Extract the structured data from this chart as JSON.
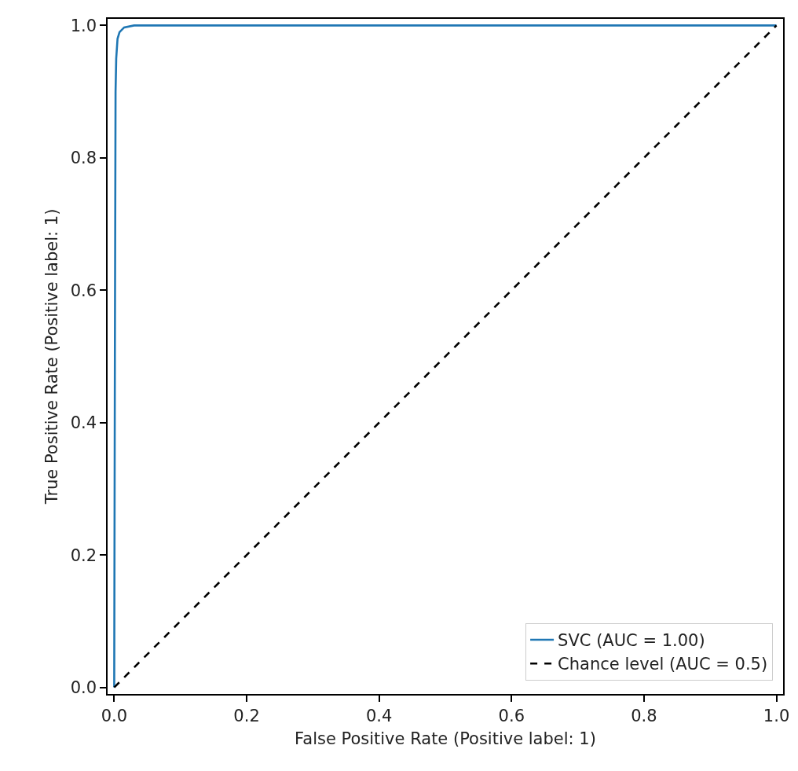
{
  "chart_data": {
    "type": "line",
    "xlabel": "False Positive Rate (Positive label: 1)",
    "ylabel": "True Positive Rate (Positive label: 1)",
    "series": [
      {
        "name": "SVC (AUC = 1.00)",
        "color": "#1f77b4",
        "line_style": "solid",
        "x": [
          0,
          0.001,
          0.002,
          0.003,
          0.005,
          0.008,
          0.015,
          0.03,
          1
        ],
        "values": [
          0,
          0.5,
          0.9,
          0.95,
          0.98,
          0.99,
          0.997,
          1,
          1
        ]
      },
      {
        "name": "Chance level (AUC = 0.5)",
        "color": "#000000",
        "line_style": "dashed",
        "x": [
          0,
          1
        ],
        "values": [
          0,
          1
        ]
      }
    ],
    "xlim": [
      -0.01,
      1.01
    ],
    "ylim": [
      -0.01,
      1.01
    ],
    "xticks": [
      {
        "value": 0,
        "label": "0.0"
      },
      {
        "value": 0.2,
        "label": "0.2"
      },
      {
        "value": 0.4,
        "label": "0.4"
      },
      {
        "value": 0.6,
        "label": "0.6"
      },
      {
        "value": 0.8,
        "label": "0.8"
      },
      {
        "value": 1,
        "label": "1.0"
      }
    ],
    "yticks": [
      {
        "value": 0,
        "label": "0.0"
      },
      {
        "value": 0.2,
        "label": "0.2"
      },
      {
        "value": 0.4,
        "label": "0.4"
      },
      {
        "value": 0.6,
        "label": "0.6"
      },
      {
        "value": 0.8,
        "label": "0.8"
      },
      {
        "value": 1,
        "label": "1.0"
      }
    ],
    "grid": false,
    "legend": "bottom right",
    "marker": "none"
  }
}
